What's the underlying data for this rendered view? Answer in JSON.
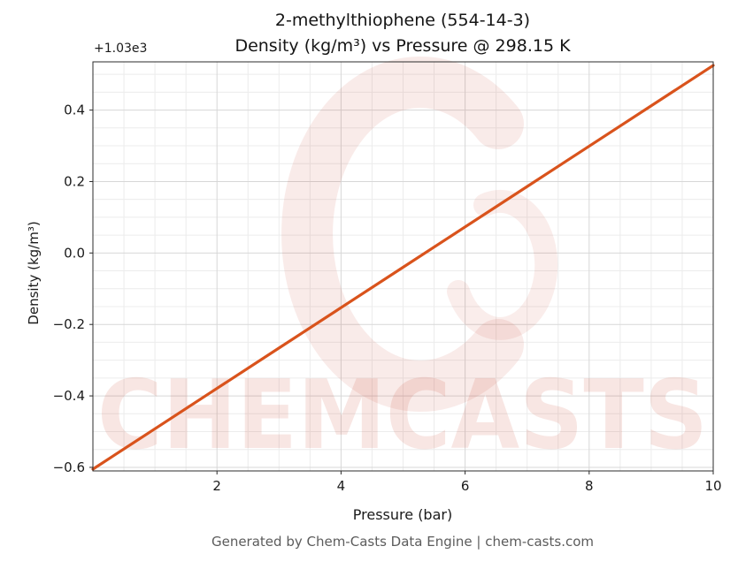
{
  "title": {
    "line1": "2-methylthiophene (554-14-3)",
    "line2": "Density (kg/m³) vs Pressure @ 298.15 K"
  },
  "axes": {
    "x_label": "Pressure (bar)",
    "y_label": "Density (kg/m³)",
    "offset_text": "+1.03e3"
  },
  "footer": "Generated by Chem-Casts Data Engine | chem-casts.com",
  "watermark": {
    "text": "CHEMCASTS",
    "color": "#c83c23"
  },
  "chart_data": {
    "type": "line",
    "title": "2-methylthiophene (554-14-3) Density (kg/m³) vs Pressure @ 298.15 K",
    "xlabel": "Pressure (bar)",
    "ylabel": "Density (kg/m³)",
    "x": [
      0,
      1,
      2,
      3,
      4,
      5,
      6,
      7,
      8,
      9,
      10
    ],
    "y": [
      1029.395,
      1029.508,
      1029.621,
      1029.734,
      1029.847,
      1029.96,
      1030.073,
      1030.186,
      1030.299,
      1030.412,
      1030.525
    ],
    "xlim": [
      0,
      10
    ],
    "ylim": [
      1029.39,
      1030.535
    ],
    "y_offset": 1030,
    "x_ticks": [
      2,
      4,
      6,
      8,
      10
    ],
    "y_ticks": [
      -0.6,
      -0.4,
      -0.2,
      0.0,
      0.2,
      0.4
    ],
    "x_minor_step": 0.5,
    "y_minor_step": 0.05,
    "line_color": "#d9531c",
    "grid": true,
    "legend": null
  }
}
